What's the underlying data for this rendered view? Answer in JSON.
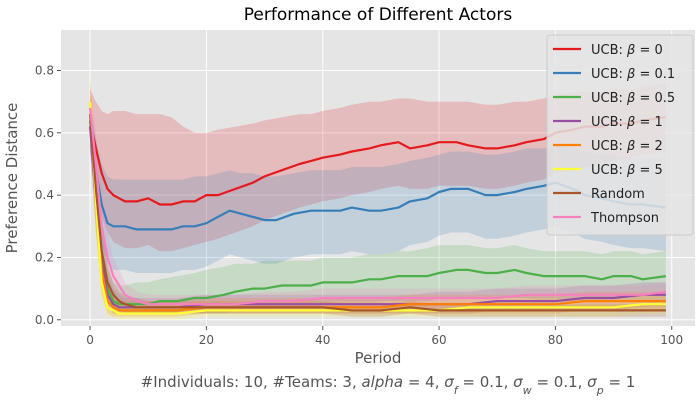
{
  "chart_data": {
    "type": "line",
    "title": "Performance of Different Actors",
    "xlabel": "Period",
    "ylabel": "Preference Distance",
    "xlim": [
      -5,
      104
    ],
    "ylim": [
      -0.02,
      0.93
    ],
    "xticks": [
      0,
      20,
      40,
      60,
      80,
      100
    ],
    "yticks": [
      0.0,
      0.2,
      0.4,
      0.6,
      0.8
    ],
    "grid": true,
    "legend_position": "top-right",
    "caption_parts": [
      "#Individuals: 10,  #Teams: 3,  ",
      "alpha",
      " = 4,  ",
      "σ",
      "f",
      " = 0.1,  ",
      "σ",
      "w",
      " = 0.1,  ",
      "σ",
      "p",
      " = 1"
    ],
    "legend_parts": [
      "UCB: ",
      "β",
      " = "
    ],
    "series": [
      {
        "name": "UCB: β = 0",
        "label_value": "0",
        "color": "#e41a1c",
        "x": [
          0,
          1,
          2,
          3,
          4,
          5,
          6,
          8,
          10,
          12,
          14,
          16,
          18,
          20,
          22,
          25,
          28,
          30,
          33,
          36,
          38,
          40,
          43,
          45,
          48,
          50,
          53,
          55,
          58,
          60,
          63,
          65,
          68,
          70,
          73,
          75,
          78,
          80,
          83,
          85,
          88,
          90,
          93,
          95,
          99
        ],
        "mean": [
          0.64,
          0.55,
          0.47,
          0.42,
          0.4,
          0.39,
          0.38,
          0.38,
          0.39,
          0.37,
          0.37,
          0.38,
          0.38,
          0.4,
          0.4,
          0.42,
          0.44,
          0.46,
          0.48,
          0.5,
          0.51,
          0.52,
          0.53,
          0.54,
          0.55,
          0.56,
          0.57,
          0.55,
          0.56,
          0.57,
          0.57,
          0.56,
          0.55,
          0.55,
          0.56,
          0.57,
          0.58,
          0.6,
          0.61,
          0.62,
          0.62,
          0.63,
          0.63,
          0.64,
          0.65
        ],
        "upper": [
          0.74,
          0.7,
          0.67,
          0.66,
          0.67,
          0.67,
          0.67,
          0.66,
          0.66,
          0.66,
          0.65,
          0.62,
          0.6,
          0.6,
          0.61,
          0.62,
          0.63,
          0.64,
          0.65,
          0.66,
          0.66,
          0.67,
          0.68,
          0.69,
          0.7,
          0.7,
          0.71,
          0.71,
          0.7,
          0.7,
          0.7,
          0.7,
          0.69,
          0.69,
          0.7,
          0.7,
          0.71,
          0.72,
          0.73,
          0.73,
          0.73,
          0.74,
          0.74,
          0.75,
          0.76
        ],
        "lower": [
          0.54,
          0.42,
          0.33,
          0.28,
          0.25,
          0.24,
          0.23,
          0.23,
          0.24,
          0.22,
          0.22,
          0.23,
          0.24,
          0.25,
          0.26,
          0.28,
          0.3,
          0.32,
          0.34,
          0.36,
          0.37,
          0.38,
          0.39,
          0.4,
          0.41,
          0.42,
          0.43,
          0.42,
          0.42,
          0.43,
          0.43,
          0.43,
          0.42,
          0.42,
          0.43,
          0.44,
          0.45,
          0.47,
          0.48,
          0.49,
          0.5,
          0.51,
          0.52,
          0.53,
          0.54
        ]
      },
      {
        "name": "UCB: β = 0.1",
        "label_value": "0.1",
        "color": "#377eb8",
        "x": [
          0,
          1,
          2,
          3,
          4,
          5,
          6,
          8,
          10,
          12,
          14,
          16,
          18,
          20,
          22,
          24,
          26,
          28,
          30,
          32,
          35,
          38,
          40,
          43,
          45,
          48,
          50,
          53,
          55,
          58,
          60,
          62,
          65,
          68,
          70,
          73,
          75,
          78,
          80,
          83,
          85,
          88,
          90,
          93,
          95,
          99
        ],
        "mean": [
          0.62,
          0.48,
          0.37,
          0.31,
          0.3,
          0.3,
          0.3,
          0.29,
          0.29,
          0.29,
          0.29,
          0.3,
          0.3,
          0.31,
          0.33,
          0.35,
          0.34,
          0.33,
          0.32,
          0.32,
          0.34,
          0.35,
          0.35,
          0.35,
          0.36,
          0.35,
          0.35,
          0.36,
          0.38,
          0.39,
          0.41,
          0.42,
          0.42,
          0.4,
          0.4,
          0.41,
          0.42,
          0.43,
          0.44,
          0.42,
          0.4,
          0.39,
          0.38,
          0.37,
          0.37,
          0.36
        ],
        "upper": [
          0.7,
          0.58,
          0.5,
          0.46,
          0.45,
          0.45,
          0.45,
          0.45,
          0.45,
          0.45,
          0.45,
          0.45,
          0.46,
          0.46,
          0.47,
          0.48,
          0.47,
          0.47,
          0.46,
          0.46,
          0.47,
          0.48,
          0.48,
          0.48,
          0.49,
          0.49,
          0.49,
          0.5,
          0.51,
          0.52,
          0.53,
          0.54,
          0.54,
          0.53,
          0.53,
          0.54,
          0.55,
          0.55,
          0.56,
          0.55,
          0.54,
          0.53,
          0.53,
          0.52,
          0.52,
          0.52
        ],
        "lower": [
          0.54,
          0.38,
          0.25,
          0.18,
          0.16,
          0.16,
          0.16,
          0.15,
          0.15,
          0.15,
          0.15,
          0.16,
          0.16,
          0.17,
          0.19,
          0.21,
          0.2,
          0.19,
          0.18,
          0.18,
          0.2,
          0.21,
          0.21,
          0.21,
          0.22,
          0.21,
          0.21,
          0.22,
          0.24,
          0.25,
          0.27,
          0.28,
          0.28,
          0.26,
          0.26,
          0.27,
          0.28,
          0.29,
          0.3,
          0.28,
          0.26,
          0.25,
          0.24,
          0.23,
          0.23,
          0.22
        ]
      },
      {
        "name": "UCB: β = 0.5",
        "label_value": "0.5",
        "color": "#4daf4a",
        "x": [
          0,
          1,
          2,
          3,
          4,
          5,
          6,
          8,
          10,
          12,
          15,
          18,
          20,
          23,
          25,
          28,
          30,
          33,
          35,
          38,
          40,
          43,
          45,
          48,
          50,
          53,
          55,
          58,
          60,
          63,
          65,
          68,
          70,
          73,
          75,
          78,
          80,
          83,
          85,
          88,
          90,
          93,
          95,
          99
        ],
        "mean": [
          0.64,
          0.4,
          0.2,
          0.1,
          0.06,
          0.05,
          0.05,
          0.05,
          0.05,
          0.06,
          0.06,
          0.07,
          0.07,
          0.08,
          0.09,
          0.1,
          0.1,
          0.11,
          0.11,
          0.11,
          0.12,
          0.12,
          0.12,
          0.13,
          0.13,
          0.14,
          0.14,
          0.14,
          0.15,
          0.16,
          0.16,
          0.15,
          0.15,
          0.16,
          0.15,
          0.14,
          0.14,
          0.14,
          0.14,
          0.13,
          0.14,
          0.14,
          0.13,
          0.14
        ],
        "upper": [
          0.72,
          0.5,
          0.3,
          0.17,
          0.12,
          0.11,
          0.11,
          0.12,
          0.12,
          0.13,
          0.14,
          0.15,
          0.16,
          0.17,
          0.18,
          0.18,
          0.19,
          0.19,
          0.19,
          0.19,
          0.2,
          0.2,
          0.2,
          0.21,
          0.21,
          0.22,
          0.22,
          0.23,
          0.24,
          0.24,
          0.24,
          0.23,
          0.23,
          0.24,
          0.23,
          0.22,
          0.22,
          0.22,
          0.22,
          0.21,
          0.22,
          0.22,
          0.21,
          0.22
        ],
        "lower": [
          0.56,
          0.3,
          0.12,
          0.05,
          0.02,
          0.02,
          0.02,
          0.02,
          0.02,
          0.02,
          0.02,
          0.02,
          0.02,
          0.02,
          0.03,
          0.03,
          0.03,
          0.04,
          0.04,
          0.04,
          0.05,
          0.05,
          0.05,
          0.05,
          0.06,
          0.06,
          0.06,
          0.06,
          0.07,
          0.07,
          0.07,
          0.07,
          0.07,
          0.07,
          0.07,
          0.06,
          0.06,
          0.06,
          0.06,
          0.06,
          0.06,
          0.06,
          0.06,
          0.06
        ]
      },
      {
        "name": "UCB: β = 1",
        "label_value": "1",
        "color": "#984ea3",
        "x": [
          0,
          1,
          2,
          3,
          4,
          5,
          6,
          8,
          10,
          15,
          20,
          25,
          30,
          35,
          40,
          45,
          50,
          55,
          60,
          65,
          70,
          75,
          80,
          85,
          90,
          95,
          99
        ],
        "mean": [
          0.62,
          0.38,
          0.18,
          0.08,
          0.05,
          0.04,
          0.04,
          0.04,
          0.04,
          0.04,
          0.05,
          0.05,
          0.05,
          0.05,
          0.05,
          0.05,
          0.05,
          0.05,
          0.05,
          0.05,
          0.06,
          0.06,
          0.06,
          0.07,
          0.07,
          0.08,
          0.08
        ],
        "upper": [
          0.7,
          0.48,
          0.28,
          0.15,
          0.1,
          0.08,
          0.07,
          0.07,
          0.07,
          0.07,
          0.08,
          0.08,
          0.08,
          0.08,
          0.08,
          0.08,
          0.08,
          0.08,
          0.09,
          0.09,
          0.1,
          0.1,
          0.1,
          0.11,
          0.11,
          0.12,
          0.12
        ],
        "lower": [
          0.54,
          0.28,
          0.1,
          0.04,
          0.02,
          0.02,
          0.02,
          0.02,
          0.02,
          0.02,
          0.02,
          0.02,
          0.02,
          0.02,
          0.02,
          0.02,
          0.02,
          0.02,
          0.02,
          0.02,
          0.03,
          0.03,
          0.03,
          0.03,
          0.03,
          0.04,
          0.04
        ]
      },
      {
        "name": "UCB: β = 2",
        "label_value": "2",
        "color": "#ff7f00",
        "x": [
          0,
          1,
          2,
          3,
          4,
          5,
          6,
          8,
          10,
          15,
          20,
          25,
          30,
          35,
          40,
          45,
          50,
          55,
          60,
          65,
          70,
          75,
          80,
          85,
          90,
          95,
          99
        ],
        "mean": [
          0.7,
          0.4,
          0.16,
          0.06,
          0.04,
          0.03,
          0.03,
          0.03,
          0.03,
          0.03,
          0.04,
          0.04,
          0.04,
          0.04,
          0.04,
          0.04,
          0.04,
          0.05,
          0.05,
          0.05,
          0.05,
          0.05,
          0.05,
          0.06,
          0.06,
          0.06,
          0.06
        ],
        "upper": [
          0.78,
          0.5,
          0.25,
          0.12,
          0.08,
          0.06,
          0.06,
          0.06,
          0.06,
          0.06,
          0.07,
          0.07,
          0.07,
          0.07,
          0.07,
          0.07,
          0.07,
          0.08,
          0.08,
          0.08,
          0.08,
          0.08,
          0.08,
          0.09,
          0.09,
          0.09,
          0.09
        ],
        "lower": [
          0.62,
          0.3,
          0.08,
          0.02,
          0.01,
          0.01,
          0.01,
          0.01,
          0.01,
          0.01,
          0.02,
          0.02,
          0.02,
          0.02,
          0.02,
          0.02,
          0.02,
          0.02,
          0.02,
          0.02,
          0.02,
          0.02,
          0.02,
          0.03,
          0.03,
          0.03,
          0.03
        ]
      },
      {
        "name": "UCB: β = 5",
        "label_value": "5",
        "color": "#ffff33",
        "x": [
          0,
          1,
          2,
          3,
          4,
          5,
          6,
          8,
          10,
          15,
          20,
          25,
          30,
          35,
          40,
          45,
          50,
          55,
          60,
          65,
          70,
          75,
          80,
          85,
          90,
          95,
          99
        ],
        "mean": [
          0.7,
          0.38,
          0.12,
          0.04,
          0.03,
          0.02,
          0.02,
          0.02,
          0.02,
          0.02,
          0.03,
          0.03,
          0.03,
          0.03,
          0.03,
          0.03,
          0.03,
          0.03,
          0.03,
          0.04,
          0.04,
          0.04,
          0.04,
          0.04,
          0.04,
          0.05,
          0.05
        ],
        "upper": [
          0.8,
          0.48,
          0.2,
          0.09,
          0.07,
          0.05,
          0.05,
          0.05,
          0.05,
          0.05,
          0.06,
          0.06,
          0.06,
          0.06,
          0.06,
          0.06,
          0.06,
          0.06,
          0.06,
          0.07,
          0.07,
          0.07,
          0.07,
          0.07,
          0.07,
          0.08,
          0.08
        ],
        "lower": [
          0.62,
          0.28,
          0.06,
          0.01,
          0.01,
          0.0,
          0.0,
          0.0,
          0.0,
          0.0,
          0.01,
          0.01,
          0.01,
          0.01,
          0.01,
          0.01,
          0.01,
          0.01,
          0.01,
          0.01,
          0.01,
          0.01,
          0.01,
          0.01,
          0.01,
          0.02,
          0.02
        ]
      },
      {
        "name": "Random",
        "color": "#a65628",
        "x": [
          0,
          1,
          2,
          3,
          4,
          5,
          6,
          8,
          10,
          15,
          20,
          25,
          30,
          35,
          40,
          45,
          50,
          55,
          60,
          65,
          70,
          75,
          80,
          85,
          90,
          95,
          99
        ],
        "mean": [
          0.66,
          0.42,
          0.22,
          0.12,
          0.08,
          0.06,
          0.05,
          0.04,
          0.04,
          0.04,
          0.04,
          0.04,
          0.04,
          0.04,
          0.04,
          0.03,
          0.03,
          0.04,
          0.03,
          0.03,
          0.03,
          0.03,
          0.03,
          0.03,
          0.03,
          0.03,
          0.03
        ],
        "upper": [
          0.72,
          0.52,
          0.3,
          0.18,
          0.12,
          0.09,
          0.08,
          0.07,
          0.06,
          0.06,
          0.06,
          0.06,
          0.06,
          0.06,
          0.06,
          0.05,
          0.05,
          0.06,
          0.05,
          0.05,
          0.05,
          0.05,
          0.05,
          0.05,
          0.05,
          0.05,
          0.05
        ],
        "lower": [
          0.6,
          0.32,
          0.14,
          0.07,
          0.04,
          0.03,
          0.02,
          0.02,
          0.02,
          0.02,
          0.02,
          0.02,
          0.02,
          0.02,
          0.02,
          0.01,
          0.01,
          0.02,
          0.01,
          0.01,
          0.01,
          0.01,
          0.01,
          0.01,
          0.01,
          0.01,
          0.01
        ]
      },
      {
        "name": "Thompson",
        "color": "#f781bf",
        "x": [
          0,
          1,
          2,
          3,
          4,
          5,
          6,
          8,
          10,
          12,
          15,
          20,
          25,
          30,
          35,
          40,
          45,
          50,
          55,
          60,
          65,
          70,
          75,
          80,
          85,
          90,
          95,
          99
        ],
        "mean": [
          0.68,
          0.5,
          0.3,
          0.2,
          0.14,
          0.11,
          0.08,
          0.06,
          0.05,
          0.05,
          0.05,
          0.05,
          0.05,
          0.06,
          0.06,
          0.07,
          0.07,
          0.07,
          0.07,
          0.07,
          0.07,
          0.07,
          0.08,
          0.08,
          0.08,
          0.08,
          0.08,
          0.09
        ],
        "upper": [
          0.76,
          0.6,
          0.4,
          0.28,
          0.2,
          0.16,
          0.12,
          0.09,
          0.08,
          0.08,
          0.08,
          0.08,
          0.08,
          0.09,
          0.09,
          0.1,
          0.1,
          0.1,
          0.1,
          0.1,
          0.1,
          0.1,
          0.11,
          0.11,
          0.11,
          0.11,
          0.11,
          0.12
        ],
        "lower": [
          0.6,
          0.4,
          0.22,
          0.13,
          0.09,
          0.07,
          0.05,
          0.03,
          0.03,
          0.03,
          0.03,
          0.03,
          0.03,
          0.03,
          0.03,
          0.04,
          0.04,
          0.04,
          0.04,
          0.04,
          0.04,
          0.04,
          0.05,
          0.05,
          0.05,
          0.05,
          0.05,
          0.06
        ]
      }
    ]
  }
}
